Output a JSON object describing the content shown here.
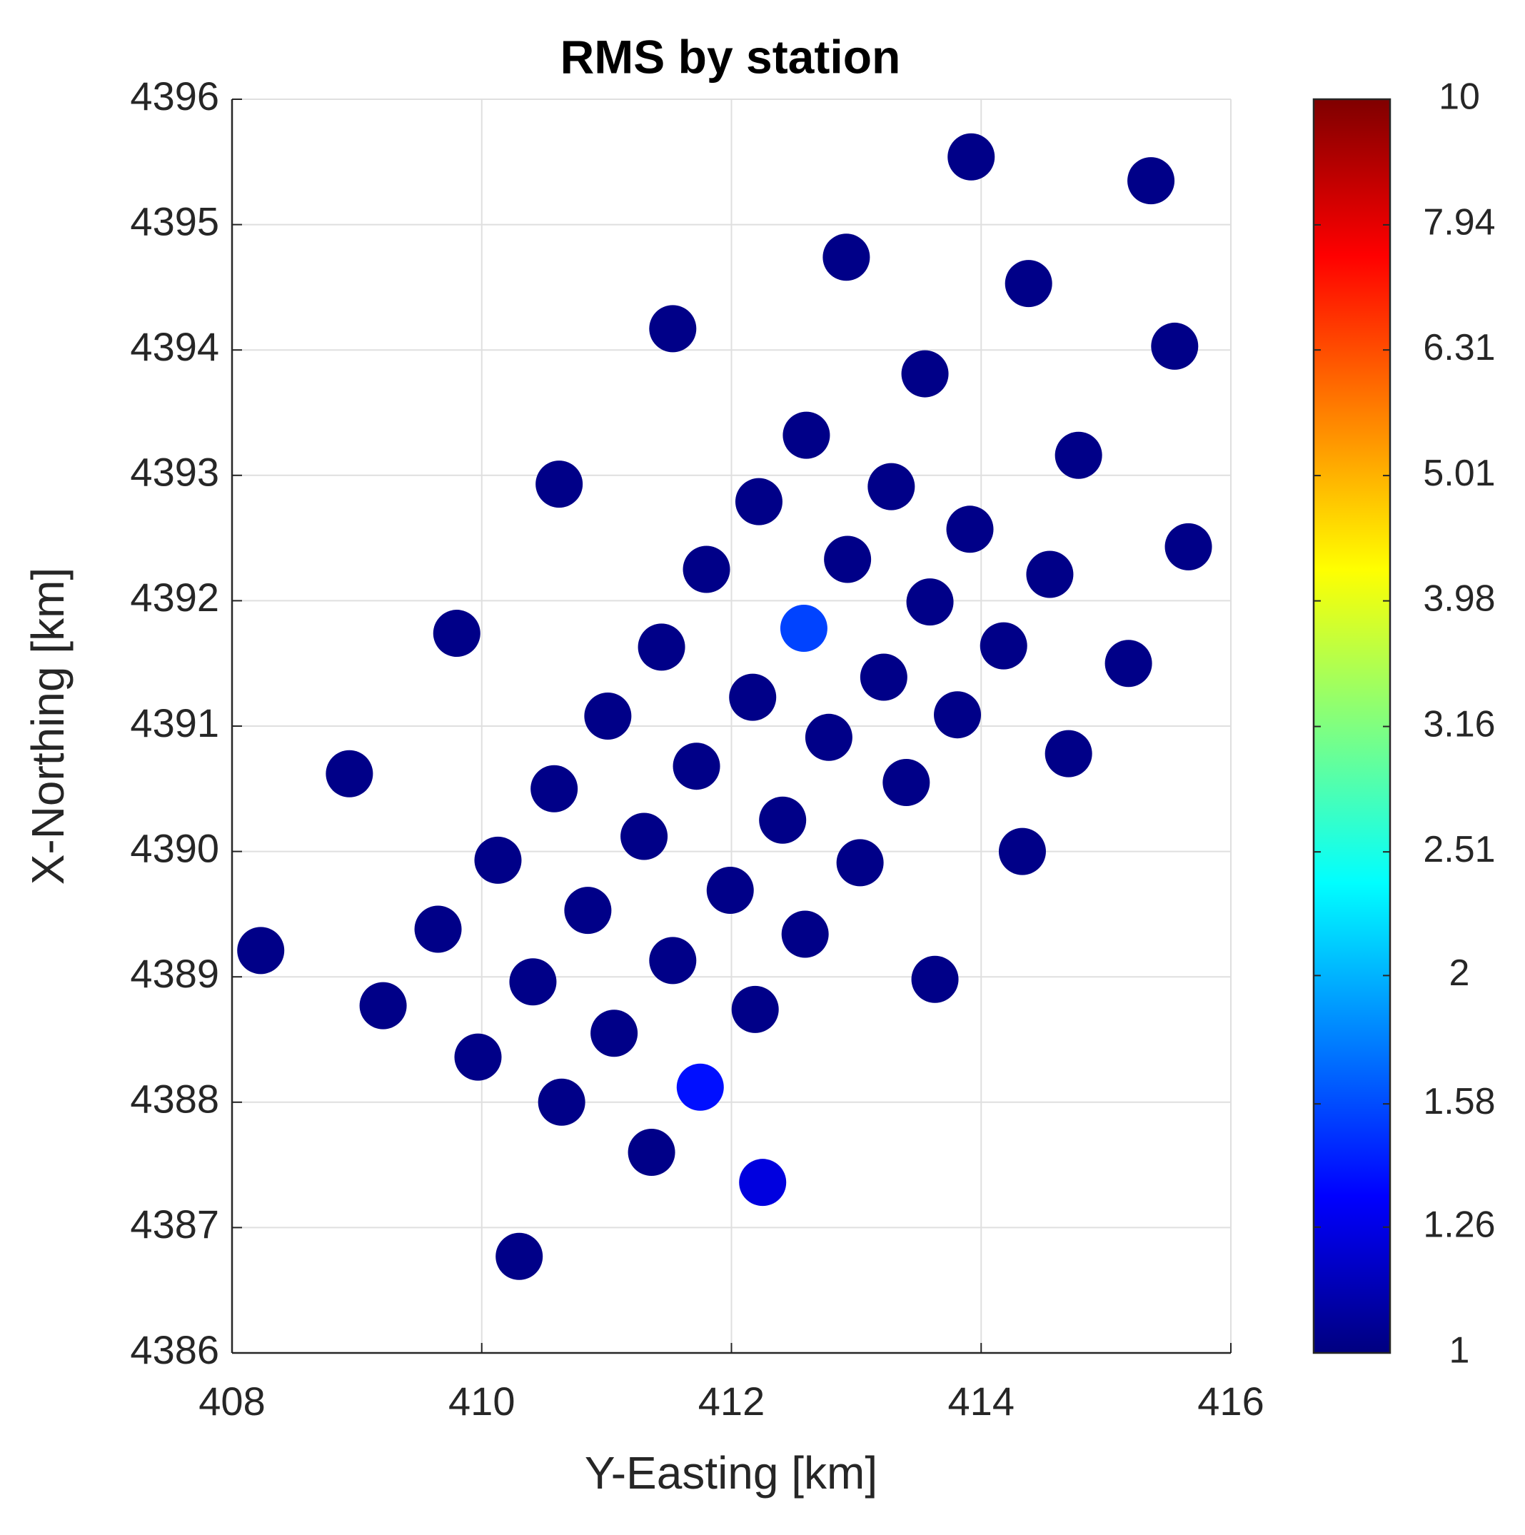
{
  "chart_data": {
    "type": "scatter",
    "title": "RMS by station",
    "xlabel": "Y-Easting [km]",
    "ylabel": "X-Northing [km]",
    "xlim": [
      408,
      416
    ],
    "ylim": [
      4386,
      4396
    ],
    "xticks": [
      408,
      410,
      412,
      414,
      416
    ],
    "yticks": [
      4386,
      4387,
      4388,
      4389,
      4390,
      4391,
      4392,
      4393,
      4394,
      4395,
      4396
    ],
    "grid": true,
    "x": [
      413.92,
      415.36,
      412.92,
      414.38,
      411.53,
      415.55,
      413.55,
      412.6,
      414.78,
      410.62,
      413.28,
      412.22,
      413.91,
      415.66,
      412.93,
      411.8,
      414.55,
      413.59,
      412.58,
      409.8,
      411.44,
      414.18,
      415.18,
      413.22,
      412.17,
      413.81,
      411.01,
      412.78,
      414.7,
      408.94,
      411.72,
      410.58,
      413.4,
      412.41,
      411.3,
      413.03,
      414.33,
      410.13,
      411.99,
      410.85,
      409.65,
      412.59,
      408.23,
      411.53,
      410.41,
      413.63,
      409.21,
      412.19,
      411.06,
      409.97,
      411.75,
      410.64,
      411.36,
      412.25,
      410.3
    ],
    "y": [
      4395.54,
      4395.35,
      4394.74,
      4394.53,
      4394.17,
      4394.03,
      4393.81,
      4393.32,
      4393.16,
      4392.93,
      4392.91,
      4392.79,
      4392.57,
      4392.43,
      4392.33,
      4392.25,
      4392.21,
      4391.99,
      4391.78,
      4391.74,
      4391.63,
      4391.64,
      4391.5,
      4391.39,
      4391.23,
      4391.09,
      4391.08,
      4390.91,
      4390.78,
      4390.62,
      4390.68,
      4390.5,
      4390.55,
      4390.25,
      4390.12,
      4389.91,
      4390.0,
      4389.93,
      4389.69,
      4389.53,
      4389.38,
      4389.34,
      4389.21,
      4389.13,
      4388.96,
      4388.98,
      4388.77,
      4388.74,
      4388.55,
      4388.36,
      4388.12,
      4388.0,
      4387.6,
      4387.36,
      4386.77
    ],
    "values": [
      1.02,
      1.02,
      1.02,
      1.02,
      1.02,
      1.02,
      1.02,
      1.02,
      1.02,
      1.02,
      1.02,
      1.02,
      1.02,
      1.02,
      1.02,
      1.02,
      1.02,
      1.02,
      1.55,
      1.02,
      1.02,
      1.02,
      1.02,
      1.02,
      1.02,
      1.02,
      1.02,
      1.02,
      1.02,
      1.02,
      1.02,
      1.02,
      1.02,
      1.02,
      1.02,
      1.02,
      1.02,
      1.02,
      1.02,
      1.02,
      1.02,
      1.02,
      1.02,
      1.02,
      1.02,
      1.02,
      1.02,
      1.02,
      1.02,
      1.02,
      1.38,
      1.02,
      1.02,
      1.24,
      1.02
    ],
    "colormap": "jet",
    "color_scale": "log",
    "clim": [
      1,
      10
    ],
    "cticks": [
      1,
      1.26,
      1.58,
      2,
      2.51,
      3.16,
      3.98,
      5.01,
      6.31,
      7.94,
      10
    ]
  }
}
